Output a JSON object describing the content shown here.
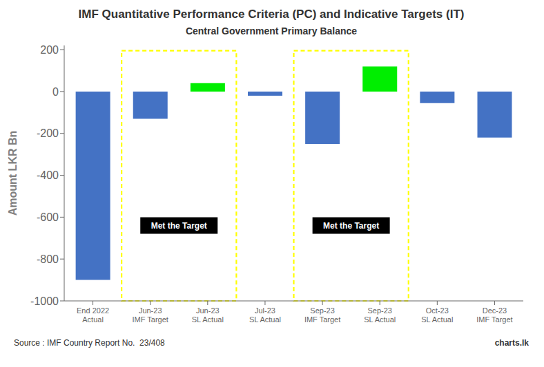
{
  "chart_data": {
    "type": "bar",
    "title": "IMF Quantitative Performance Criteria (PC) and Indicative Targets (IT)",
    "subtitle": "Central Government Primary Balance",
    "ylabel": "Amount LKR Bn",
    "source": "Source : IMF Country Report No.  23/408",
    "credit": "charts.lk",
    "categories": [
      "End 2022\nActual",
      "Jun-23\nIMF Target",
      "Jun-23\nSL Actual",
      "Jul-23\nSL Actual",
      "Sep-23\nIMF Target",
      "Sep-23\nSL Actual",
      "Oct-23\nSL Actual",
      "Dec-23\nIMF Target"
    ],
    "values": [
      -900,
      -130,
      40,
      -20,
      -250,
      120,
      -55,
      -220
    ],
    "colors": [
      "#4472c4",
      "#4472c4",
      "#00ee00",
      "#4472c4",
      "#4472c4",
      "#00ee00",
      "#4472c4",
      "#4472c4"
    ],
    "ylim": [
      -1000,
      220
    ],
    "yticks": [
      -1000,
      -800,
      -600,
      -400,
      -200,
      0,
      200
    ],
    "grid": false,
    "annotations": [
      {
        "text": "Met the Target",
        "categories": [
          "Jun-23\nIMF Target",
          "Jun-23\nSL Actual"
        ],
        "y": -640,
        "box_ylim": [
          -1000,
          195
        ],
        "color": "yellow"
      },
      {
        "text": "Met the Target",
        "categories": [
          "Sep-23\nIMF Target",
          "Sep-23\nSL Actual"
        ],
        "y": -640,
        "box_ylim": [
          -1000,
          195
        ],
        "color": "yellow"
      }
    ]
  }
}
